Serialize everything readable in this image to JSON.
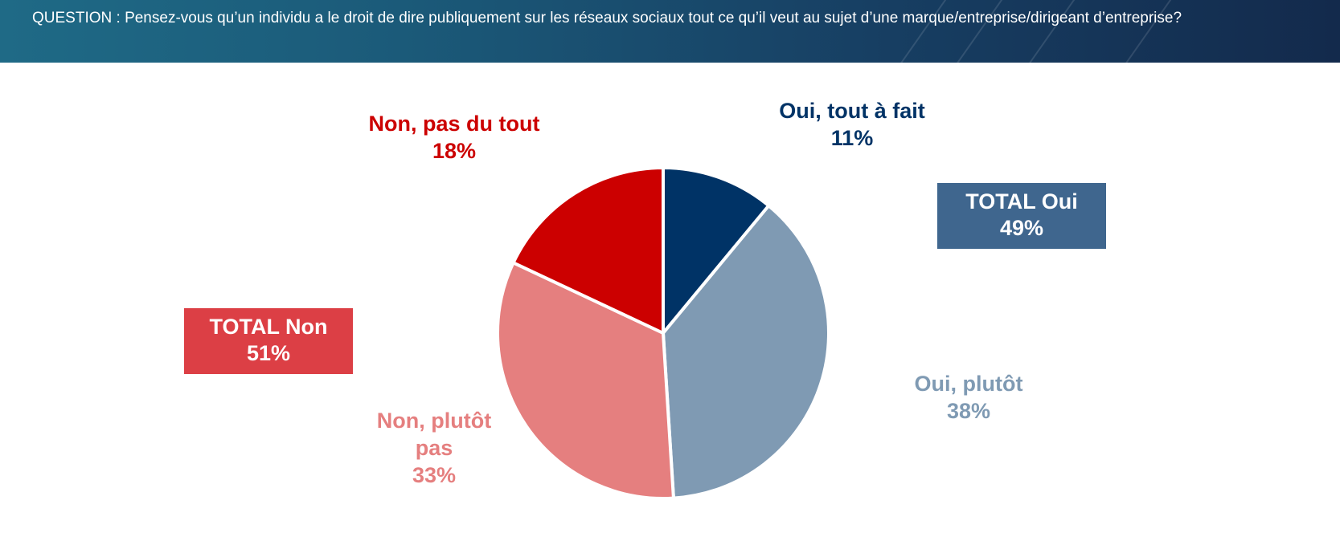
{
  "header": {
    "question": "QUESTION : Pensez-vous qu’un individu a le droit de dire publiquement sur les réseaux sociaux tout ce qu’il veut au sujet d’une marque/entreprise/dirigeant d’entreprise?"
  },
  "colors": {
    "header_start": "#1f6a86",
    "header_end": "#132a4c",
    "oui_tout_a_fait": "#003366",
    "oui_plutot": "#7f9ab3",
    "non_plutot_pas": "#e57f7f",
    "non_pas_du_tout": "#cc0000",
    "total_oui_box": "#3f668e",
    "total_non_box": "#dc3f45"
  },
  "chart_data": {
    "type": "pie",
    "categories": [
      "Oui, tout à fait",
      "Oui, plutôt",
      "Non, plutôt pas",
      "Non, pas du tout"
    ],
    "values": [
      11,
      38,
      33,
      18
    ],
    "unit": "%",
    "slice_labels": [
      {
        "lines": [
          "Oui, tout à fait"
        ],
        "value": "11%"
      },
      {
        "lines": [
          "Oui, plutôt"
        ],
        "value": "38%"
      },
      {
        "lines": [
          "Non, plutôt",
          "pas"
        ],
        "value": "33%"
      },
      {
        "lines": [
          "Non, pas du tout"
        ],
        "value": "18%"
      }
    ],
    "totals": {
      "oui": {
        "label": "TOTAL Oui",
        "value": "49%"
      },
      "non": {
        "label": "TOTAL Non",
        "value": "51%"
      }
    }
  }
}
